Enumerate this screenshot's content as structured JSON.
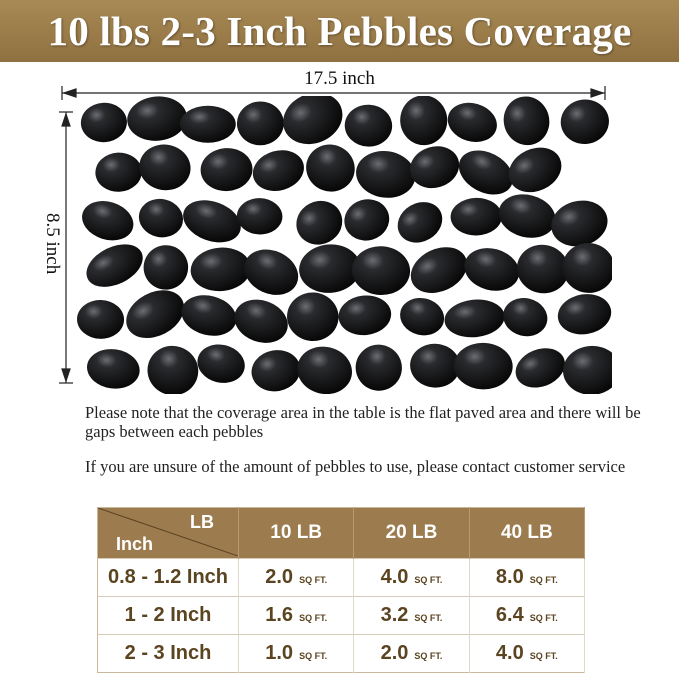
{
  "title": "10 lbs 2-3 Inch Pebbles Coverage",
  "dimensions": {
    "width": "17.5 inch",
    "height": "8.5 inch"
  },
  "notes": [
    "Please note that the coverage area in the table is the flat paved area and there will be gaps between each pebbles",
    "If you are unsure of the amount of pebbles to use, please contact customer service"
  ],
  "table": {
    "corner_top": "LB",
    "corner_bottom": "Inch",
    "columns": [
      "10 LB",
      "20 LB",
      "40 LB"
    ],
    "unit": "SQ FT.",
    "rows": [
      {
        "size": "0.8 - 1.2 Inch",
        "values": [
          "2.0",
          "4.0",
          "8.0"
        ]
      },
      {
        "size": "1 - 2 Inch",
        "values": [
          "1.6",
          "3.2",
          "6.4"
        ]
      },
      {
        "size": "2 - 3 Inch",
        "values": [
          "1.0",
          "2.0",
          "4.0"
        ]
      }
    ]
  },
  "colors": {
    "brand_brown": "#9c7b4f",
    "text_brown": "#5b4420",
    "pebble": "#151515"
  }
}
